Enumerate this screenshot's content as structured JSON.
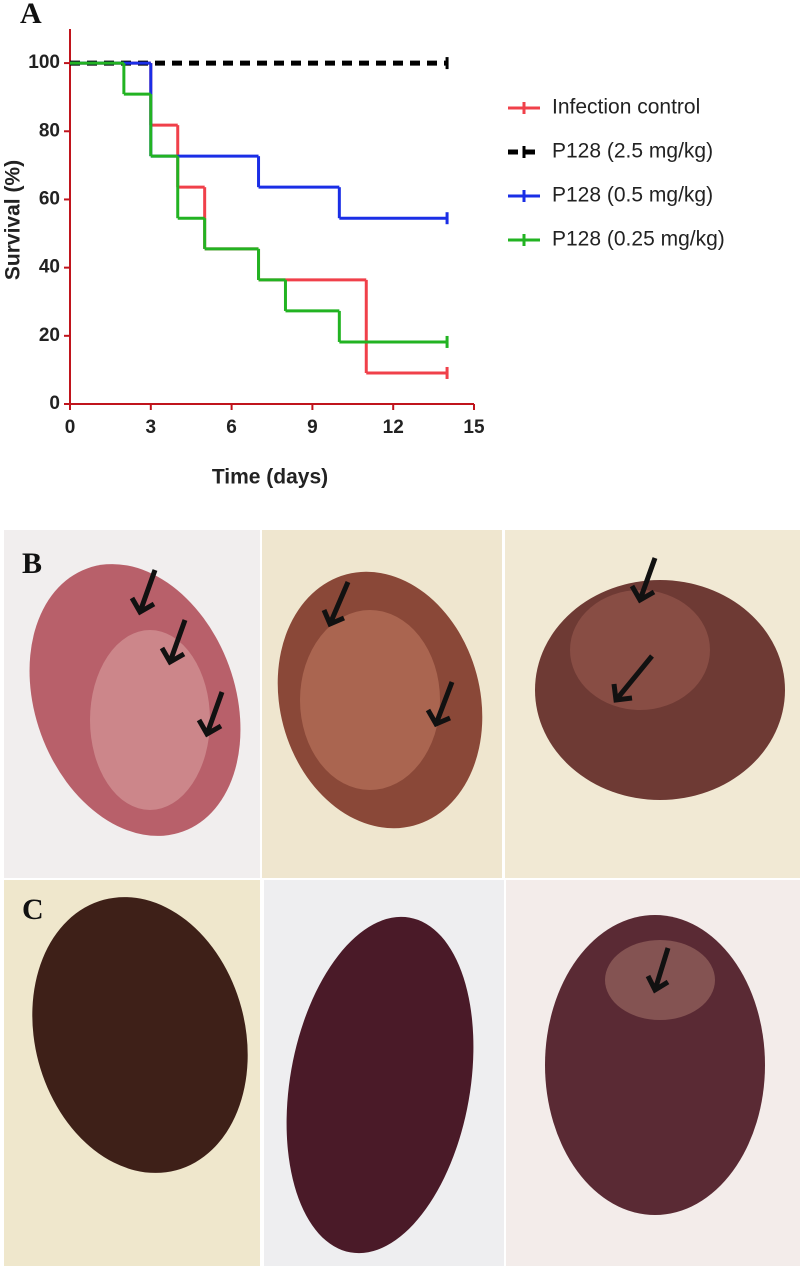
{
  "panels": {
    "a": "A",
    "b": "B",
    "c": "C"
  },
  "chart_data": {
    "type": "step",
    "xlabel": "Time (days)",
    "ylabel": "Survival (%)",
    "xlim": [
      0,
      15
    ],
    "xticks": [
      0,
      3,
      6,
      9,
      12,
      15
    ],
    "ylim": [
      0,
      110
    ],
    "yticks": [
      0,
      20,
      40,
      60,
      80,
      100
    ],
    "axis_color": "#c0141c",
    "series": [
      {
        "name": "Infection control",
        "color": "#f0404a",
        "dashed": false,
        "x": [
          0,
          3,
          4,
          5,
          7,
          11,
          14
        ],
        "values": [
          100,
          81.8,
          63.6,
          45.5,
          36.4,
          9.1,
          9.1
        ]
      },
      {
        "name": "P128 (2.5 mg/kg)",
        "color": "#000000",
        "dashed": true,
        "x": [
          0,
          14
        ],
        "values": [
          100,
          100
        ]
      },
      {
        "name": "P128 (0.5 mg/kg)",
        "color": "#1a2ee6",
        "dashed": false,
        "x": [
          0,
          3,
          7,
          10,
          14
        ],
        "values": [
          100,
          72.7,
          63.6,
          54.5,
          54.5
        ]
      },
      {
        "name": "P128 (0.25 mg/kg)",
        "color": "#22b322",
        "dashed": false,
        "x": [
          0,
          2,
          3,
          4,
          5,
          7,
          8,
          10,
          14
        ],
        "values": [
          100,
          90.9,
          72.7,
          54.5,
          45.5,
          36.4,
          27.3,
          18.2,
          18.2
        ]
      }
    ]
  }
}
